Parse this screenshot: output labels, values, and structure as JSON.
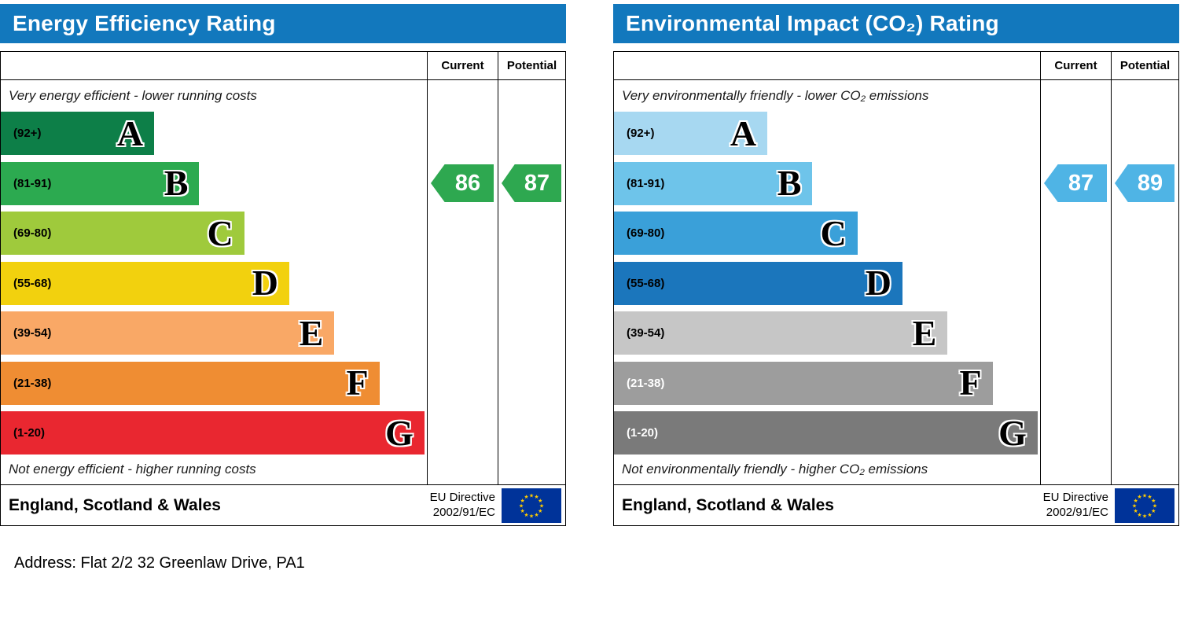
{
  "address_line": "Address: Flat 2/2 32 Greenlaw Drive, PA1",
  "charts": [
    {
      "title": "Energy Efficiency Rating",
      "accent_color": "#1278bd",
      "columns": {
        "current": "Current",
        "potential": "Potential"
      },
      "top_note": "Very energy efficient - lower running costs",
      "bottom_note": "Not energy efficient - higher running costs",
      "region": "England, Scotland & Wales",
      "directive": {
        "line1": "EU Directive",
        "line2": "2002/91/EC"
      },
      "bands": [
        {
          "letter": "A",
          "range": "(92+)",
          "color": "#0d7f48",
          "text_color": "#000000"
        },
        {
          "letter": "B",
          "range": "(81-91)",
          "color": "#2caa50",
          "text_color": "#000000"
        },
        {
          "letter": "C",
          "range": "(69-80)",
          "color": "#9fca3c",
          "text_color": "#000000"
        },
        {
          "letter": "D",
          "range": "(55-68)",
          "color": "#f2d10e",
          "text_color": "#000000"
        },
        {
          "letter": "E",
          "range": "(39-54)",
          "color": "#f9a866",
          "text_color": "#000000"
        },
        {
          "letter": "F",
          "range": "(21-38)",
          "color": "#ef8d33",
          "text_color": "#000000"
        },
        {
          "letter": "G",
          "range": "(1-20)",
          "color": "#e92730",
          "text_color": "#000000"
        }
      ],
      "current": {
        "value": "86",
        "band": "B",
        "band_index": 1,
        "color": "#2ea850"
      },
      "potential": {
        "value": "87",
        "band": "B",
        "band_index": 1,
        "color": "#2ea850"
      }
    },
    {
      "title": "Environmental Impact (CO₂) Rating",
      "accent_color": "#1278bd",
      "columns": {
        "current": "Current",
        "potential": "Potential"
      },
      "top_note": "Very environmentally friendly - lower CO₂ emissions",
      "bottom_note": "Not environmentally friendly - higher CO₂ emissions",
      "region": "England, Scotland & Wales",
      "directive": {
        "line1": "EU Directive",
        "line2": "2002/91/EC"
      },
      "bands": [
        {
          "letter": "A",
          "range": "(92+)",
          "color": "#a7d8f1",
          "text_color": "#000000"
        },
        {
          "letter": "B",
          "range": "(81-91)",
          "color": "#6ec4ea",
          "text_color": "#000000"
        },
        {
          "letter": "C",
          "range": "(69-80)",
          "color": "#3aa0d9",
          "text_color": "#000000"
        },
        {
          "letter": "D",
          "range": "(55-68)",
          "color": "#1b76bc",
          "text_color": "#000000"
        },
        {
          "letter": "E",
          "range": "(39-54)",
          "color": "#c6c6c6",
          "text_color": "#000000"
        },
        {
          "letter": "F",
          "range": "(21-38)",
          "color": "#9d9d9d",
          "text_color": "#ffffff"
        },
        {
          "letter": "G",
          "range": "(1-20)",
          "color": "#7a7a7a",
          "text_color": "#ffffff"
        }
      ],
      "current": {
        "value": "87",
        "band": "B",
        "band_index": 1,
        "color": "#4fb4e5"
      },
      "potential": {
        "value": "89",
        "band": "B",
        "band_index": 1,
        "color": "#4fb4e5"
      }
    }
  ],
  "chart_data": [
    {
      "type": "bar",
      "title": "Energy Efficiency Rating",
      "categories": [
        "A (92+)",
        "B (81-91)",
        "C (69-80)",
        "D (55-68)",
        "E (39-54)",
        "F (21-38)",
        "G (1-20)"
      ],
      "band_ranges": [
        [
          92,
          100
        ],
        [
          81,
          91
        ],
        [
          69,
          80
        ],
        [
          55,
          68
        ],
        [
          39,
          54
        ],
        [
          21,
          38
        ],
        [
          1,
          20
        ]
      ],
      "current": 86,
      "potential": 87,
      "current_band": "B",
      "potential_band": "B",
      "footer": "England, Scotland & Wales",
      "legend": "EU Directive 2002/91/EC"
    },
    {
      "type": "bar",
      "title": "Environmental Impact (CO₂) Rating",
      "categories": [
        "A (92+)",
        "B (81-91)",
        "C (69-80)",
        "D (55-68)",
        "E (39-54)",
        "F (21-38)",
        "G (1-20)"
      ],
      "band_ranges": [
        [
          92,
          100
        ],
        [
          81,
          91
        ],
        [
          69,
          80
        ],
        [
          55,
          68
        ],
        [
          39,
          54
        ],
        [
          21,
          38
        ],
        [
          1,
          20
        ]
      ],
      "current": 87,
      "potential": 89,
      "current_band": "B",
      "potential_band": "B",
      "footer": "England, Scotland & Wales",
      "legend": "EU Directive 2002/91/EC"
    }
  ]
}
